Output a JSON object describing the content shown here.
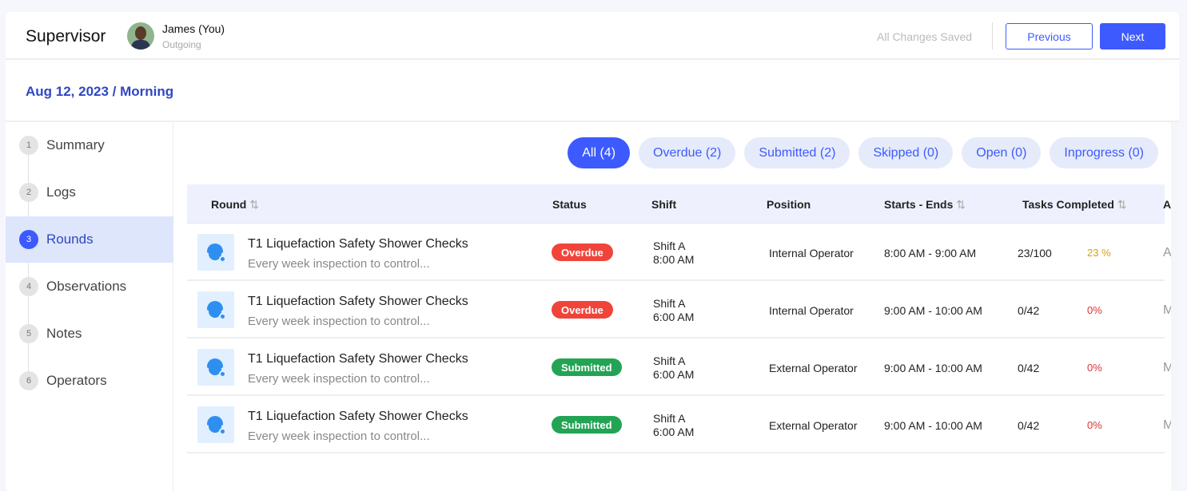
{
  "header": {
    "title": "Supervisor",
    "user_name": "James (You)",
    "user_role": "Outgoing",
    "save_status": "All Changes Saved",
    "previous_label": "Previous",
    "next_label": "Next"
  },
  "date_label": "Aug 12, 2023 / Morning",
  "sidebar": {
    "steps": [
      {
        "num": "1",
        "label": "Summary"
      },
      {
        "num": "2",
        "label": "Logs"
      },
      {
        "num": "3",
        "label": "Rounds",
        "active": true
      },
      {
        "num": "4",
        "label": "Observations"
      },
      {
        "num": "5",
        "label": "Notes"
      },
      {
        "num": "6",
        "label": "Operators"
      }
    ]
  },
  "filters": [
    "All (4)",
    "Overdue (2)",
    "Submitted (2)",
    "Skipped (0)",
    "Open (0)",
    "Inprogress (0)"
  ],
  "table": {
    "columns": [
      "Round",
      "Status",
      "Shift",
      "Position",
      "Starts - Ends",
      "Tasks Completed",
      "Ass"
    ],
    "sort_icon": "⇅",
    "rows": [
      {
        "title": "T1 Liquefaction Safety Shower Checks",
        "desc": "Every week inspection to control...",
        "status": "Overdue",
        "shift": "Shift A",
        "shift_time": "8:00 AM",
        "position": "Internal Operator",
        "time": "8:00 AM - 9:00 AM",
        "tasks": "23/100",
        "pct": "23 %",
        "assignee": "Am"
      },
      {
        "title": "T1 Liquefaction Safety Shower Checks",
        "desc": "Every week inspection to control...",
        "status": "Overdue",
        "shift": "Shift A",
        "shift_time": "6:00 AM",
        "position": "Internal Operator",
        "time": "9:00 AM - 10:00 AM",
        "tasks": "0/42",
        "pct": "0%",
        "assignee": "Me"
      },
      {
        "title": "T1 Liquefaction Safety Shower Checks",
        "desc": "Every week inspection to control...",
        "status": "Submitted",
        "shift": "Shift A",
        "shift_time": "6:00 AM",
        "position": "External Operator",
        "time": "9:00 AM - 10:00 AM",
        "tasks": "0/42",
        "pct": "0%",
        "assignee": "Me"
      },
      {
        "title": "T1 Liquefaction Safety Shower Checks",
        "desc": "Every week inspection to control...",
        "status": "Submitted",
        "shift": "Shift A",
        "shift_time": "6:00 AM",
        "position": "External Operator",
        "time": "9:00 AM - 10:00 AM",
        "tasks": "0/42",
        "pct": "0%",
        "assignee": "Me"
      }
    ]
  },
  "colors": {
    "accent": "#3d5afe",
    "overdue": "#f0443a",
    "submitted": "#23a455",
    "pct_partial": "#d4a017",
    "pct_zero": "#d33"
  }
}
